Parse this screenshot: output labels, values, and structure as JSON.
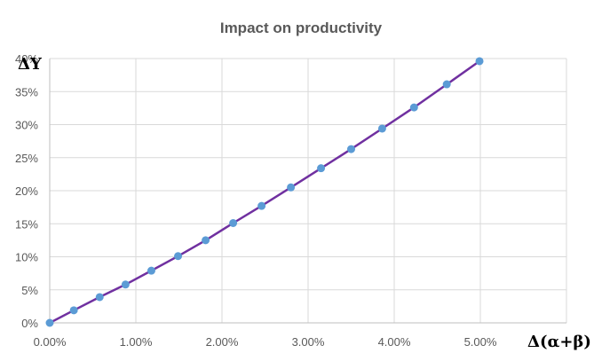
{
  "chart_data": {
    "type": "scatter",
    "title": "Impact on productivity",
    "xlabel": "Δ(α+β)",
    "ylabel": "ΔY",
    "xlim": [
      0,
      0.06
    ],
    "ylim": [
      0,
      0.4
    ],
    "x_ticks": [
      0,
      0.01,
      0.02,
      0.03,
      0.04,
      0.05
    ],
    "x_tick_labels": [
      "0.00%",
      "1.00%",
      "2.00%",
      "3.00%",
      "4.00%",
      "5.00%"
    ],
    "y_ticks": [
      0,
      0.05,
      0.1,
      0.15,
      0.2,
      0.25,
      0.3,
      0.35,
      0.4
    ],
    "y_tick_labels": [
      "0%",
      "5%",
      "10%",
      "15%",
      "20%",
      "25%",
      "30%",
      "35%",
      "40%"
    ],
    "grid": true,
    "legend": "none",
    "line_color": "#7030a0",
    "marker_color": "#5b9bd5",
    "series": [
      {
        "x": [
          0,
          0.0028,
          0.0058,
          0.0088,
          0.0118,
          0.0149,
          0.0181,
          0.0213,
          0.0246,
          0.028,
          0.0315,
          0.035,
          0.0386,
          0.0423,
          0.0461,
          0.0499
        ],
        "values": [
          0,
          0.019,
          0.039,
          0.058,
          0.079,
          0.101,
          0.125,
          0.151,
          0.177,
          0.205,
          0.234,
          0.263,
          0.294,
          0.326,
          0.361,
          0.396
        ]
      }
    ]
  }
}
